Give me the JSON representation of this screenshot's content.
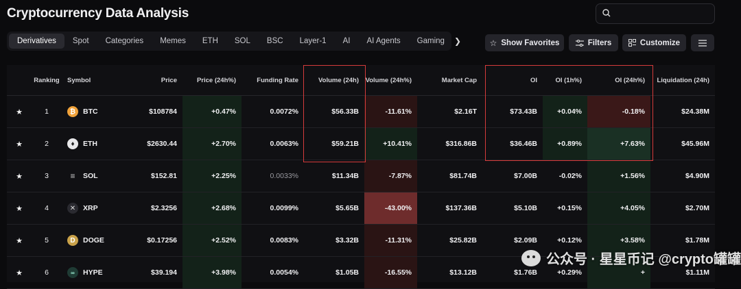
{
  "page_title": "Cryptocurrency Data Analysis",
  "search": {
    "placeholder": ""
  },
  "tabs": [
    {
      "label": "Derivatives",
      "active": true
    },
    {
      "label": "Spot"
    },
    {
      "label": "Categories"
    },
    {
      "label": "Memes"
    },
    {
      "label": "ETH"
    },
    {
      "label": "SOL"
    },
    {
      "label": "BSC"
    },
    {
      "label": "Layer-1"
    },
    {
      "label": "AI"
    },
    {
      "label": "AI Agents"
    },
    {
      "label": "Gaming"
    }
  ],
  "toolbar": {
    "favorites_label": "Show Favorites",
    "filters_label": "Filters",
    "customize_label": "Customize"
  },
  "columns": [
    "Ranking",
    "Symbol",
    "Price",
    "Price (24h%)",
    "Funding Rate",
    "Volume (24h)",
    "Volume (24h%)",
    "Market Cap",
    "OI",
    "OI (1h%)",
    "OI (24h%)",
    "Liquidation (24h)"
  ],
  "rows": [
    {
      "rank": "1",
      "symbol": "BTC",
      "price": "$108784",
      "price_chg": "+0.47%",
      "funding": "0.0072%",
      "volume": "$56.33B",
      "volume_chg": "-11.61%",
      "mcap": "$2.16T",
      "oi": "$73.43B",
      "oi_1h": "+0.04%",
      "oi_24h": "-0.18%",
      "liq": "$24.38M"
    },
    {
      "rank": "2",
      "symbol": "ETH",
      "price": "$2630.44",
      "price_chg": "+2.70%",
      "funding": "0.0063%",
      "volume": "$59.21B",
      "volume_chg": "+10.41%",
      "mcap": "$316.86B",
      "oi": "$36.46B",
      "oi_1h": "+0.89%",
      "oi_24h": "+7.63%",
      "liq": "$45.96M"
    },
    {
      "rank": "3",
      "symbol": "SOL",
      "price": "$152.81",
      "price_chg": "+2.25%",
      "funding": "0.0033%",
      "volume": "$11.34B",
      "volume_chg": "-7.87%",
      "mcap": "$81.74B",
      "oi": "$7.00B",
      "oi_1h": "-0.02%",
      "oi_24h": "+1.56%",
      "liq": "$4.90M"
    },
    {
      "rank": "4",
      "symbol": "XRP",
      "price": "$2.3256",
      "price_chg": "+2.68%",
      "funding": "0.0099%",
      "volume": "$5.65B",
      "volume_chg": "-43.00%",
      "mcap": "$137.36B",
      "oi": "$5.10B",
      "oi_1h": "+0.15%",
      "oi_24h": "+4.05%",
      "liq": "$2.70M"
    },
    {
      "rank": "5",
      "symbol": "DOGE",
      "price": "$0.17256",
      "price_chg": "+2.52%",
      "funding": "0.0083%",
      "volume": "$3.32B",
      "volume_chg": "-11.31%",
      "mcap": "$25.82B",
      "oi": "$2.09B",
      "oi_1h": "+0.12%",
      "oi_24h": "+3.58%",
      "liq": "$1.78M"
    },
    {
      "rank": "6",
      "symbol": "HYPE",
      "price": "$39.194",
      "price_chg": "+3.98%",
      "funding": "0.0054%",
      "volume": "$1.05B",
      "volume_chg": "-16.55%",
      "mcap": "$13.12B",
      "oi": "$1.76B",
      "oi_1h": "+0.29%",
      "oi_24h": "+",
      "liq": "$1.11M"
    }
  ],
  "colors": {
    "highlight_box": "#d63b3b",
    "positive_cell": "#132219",
    "negative_cell": "#2a1414",
    "strong_negative_cell": "#6e2c2c"
  },
  "watermark": {
    "text": "公众号 · 星星币记  @crypto罐罐"
  }
}
